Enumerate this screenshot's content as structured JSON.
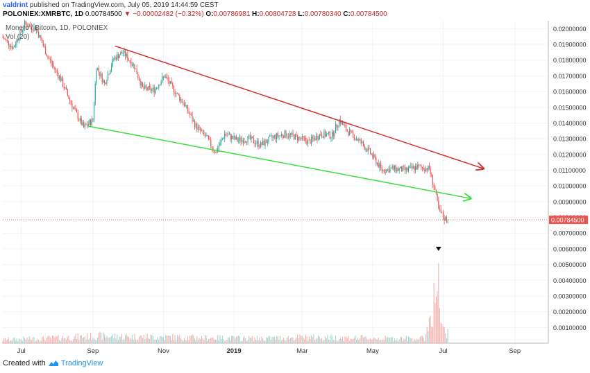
{
  "header": {
    "author": "valdrint",
    "published_text": "published on TradingView.com, July 05, 2019 14:44:59 CEST",
    "symbol": "POLONIEX:XMRBTC, 1D",
    "last": "0.00784500",
    "change_arrow": "▼",
    "change": "−0.00002482 (−0.32%)",
    "o_label": "O:",
    "o_value": "0.00786981",
    "h_label": "H:",
    "h_value": "0.00804728",
    "l_label": "L:",
    "l_value": "0.00780340",
    "c_label": "C:",
    "c_value": "0.00784500"
  },
  "footer": {
    "created_with": "Created with",
    "brand": "TradingView"
  },
  "colors": {
    "up": "#26a69a",
    "down": "#ef5350",
    "resistance": "#d32f2f",
    "support": "#3ddc3d",
    "price_line": "#ef5350"
  },
  "chart_data": {
    "type": "candlestick",
    "title": "Monero / Bitcoin, 1D, POLONIEX",
    "volume_label": "Vol (20)",
    "ylim": [
      0.0,
      0.0205
    ],
    "y_ticks": [
      "0.00100000",
      "0.00200000",
      "0.00300000",
      "0.00400000",
      "0.00500000",
      "0.00600000",
      "0.00700000",
      "0.00800000",
      "0.00900000",
      "0.01000000",
      "0.01100000",
      "0.01200000",
      "0.01300000",
      "0.01400000",
      "0.01500000",
      "0.01600000",
      "0.01700000",
      "0.01800000",
      "0.01900000",
      "0.02000000"
    ],
    "x_ticks": [
      "Jul",
      "Sep",
      "Nov",
      "2019",
      "Mar",
      "May",
      "Jul",
      "Sep"
    ],
    "x_tick_dates": [
      "2018-07-01",
      "2018-09-01",
      "2018-11-01",
      "2019-01-01",
      "2019-03-01",
      "2019-05-01",
      "2019-07-01",
      "2019-09-01"
    ],
    "x_range": [
      "2018-06-15",
      "2019-09-30"
    ],
    "current_price": 0.007845,
    "current_price_label": "0.00784500",
    "price_path": [
      [
        "2018-06-15",
        0.0195
      ],
      [
        "2018-06-25",
        0.0188
      ],
      [
        "2018-07-05",
        0.0203
      ],
      [
        "2018-07-15",
        0.02
      ],
      [
        "2018-07-25",
        0.0182
      ],
      [
        "2018-08-05",
        0.0168
      ],
      [
        "2018-08-15",
        0.0151
      ],
      [
        "2018-08-25",
        0.0137
      ],
      [
        "2018-09-02",
        0.0142
      ],
      [
        "2018-09-05",
        0.0176
      ],
      [
        "2018-09-12",
        0.0165
      ],
      [
        "2018-09-20",
        0.0181
      ],
      [
        "2018-09-28",
        0.0185
      ],
      [
        "2018-10-08",
        0.0176
      ],
      [
        "2018-10-15",
        0.0162
      ],
      [
        "2018-10-25",
        0.0161
      ],
      [
        "2018-11-03",
        0.017
      ],
      [
        "2018-11-12",
        0.016
      ],
      [
        "2018-11-20",
        0.0152
      ],
      [
        "2018-11-30",
        0.0138
      ],
      [
        "2018-12-10",
        0.013
      ],
      [
        "2018-12-17",
        0.0121
      ],
      [
        "2018-12-25",
        0.0133
      ],
      [
        "2019-01-05",
        0.0129
      ],
      [
        "2019-01-15",
        0.013
      ],
      [
        "2019-01-25",
        0.0126
      ],
      [
        "2019-02-05",
        0.0131
      ],
      [
        "2019-02-15",
        0.0133
      ],
      [
        "2019-02-25",
        0.0131
      ],
      [
        "2019-03-08",
        0.0128
      ],
      [
        "2019-03-18",
        0.0133
      ],
      [
        "2019-03-28",
        0.0132
      ],
      [
        "2019-04-03",
        0.0142
      ],
      [
        "2019-04-10",
        0.0135
      ],
      [
        "2019-04-20",
        0.0129
      ],
      [
        "2019-04-30",
        0.0121
      ],
      [
        "2019-05-10",
        0.011
      ],
      [
        "2019-05-20",
        0.0111
      ],
      [
        "2019-05-30",
        0.011
      ],
      [
        "2019-06-10",
        0.0112
      ],
      [
        "2019-06-20",
        0.0111
      ],
      [
        "2019-06-25",
        0.0097
      ],
      [
        "2019-06-28",
        0.0085
      ],
      [
        "2019-07-02",
        0.008
      ],
      [
        "2019-07-05",
        0.007845
      ]
    ],
    "volume_path": [
      [
        "2018-06-15",
        0.0003
      ],
      [
        "2018-07-20",
        0.0004
      ],
      [
        "2018-09-05",
        0.0006
      ],
      [
        "2018-11-15",
        0.0005
      ],
      [
        "2019-01-20",
        0.0004
      ],
      [
        "2019-03-10",
        0.0005
      ],
      [
        "2019-05-15",
        0.0004
      ],
      [
        "2019-06-15",
        0.0004
      ],
      [
        "2019-06-27",
        0.0051
      ],
      [
        "2019-06-29",
        0.0012
      ],
      [
        "2019-07-05",
        0.0008
      ]
    ],
    "annotations": [
      {
        "name": "resistance-trendline",
        "from": [
          "2018-09-20",
          0.0189
        ],
        "to": [
          "2019-08-05",
          0.0111
        ],
        "arrow": true
      },
      {
        "name": "support-trendline",
        "from": [
          "2018-08-28",
          0.0138
        ],
        "to": [
          "2019-07-25",
          0.0092
        ],
        "arrow": true
      }
    ],
    "markers": [
      {
        "name": "event-marker",
        "date": "2019-06-27",
        "value": 0.006,
        "symbol": "▼"
      }
    ],
    "grid": true
  }
}
